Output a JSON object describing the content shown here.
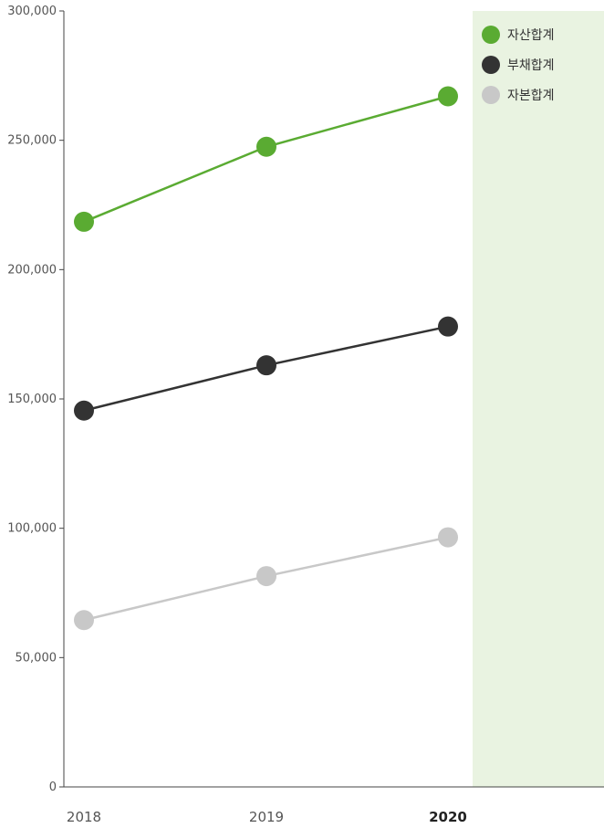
{
  "chart_data": {
    "type": "line",
    "categories": [
      "2018",
      "2019",
      "2020"
    ],
    "highlight_category": "2020",
    "ylim": [
      0,
      300000
    ],
    "y_ticks": [
      {
        "value": 0,
        "label": "0"
      },
      {
        "value": 50000,
        "label": "50,000"
      },
      {
        "value": 100000,
        "label": "100,000"
      },
      {
        "value": 150000,
        "label": "150,000"
      },
      {
        "value": 200000,
        "label": "200,000"
      },
      {
        "value": 250000,
        "label": "250,000"
      },
      {
        "value": 300000,
        "label": "300,000"
      }
    ],
    "grid": false,
    "legend_position": "top-right",
    "title": "",
    "xlabel": "",
    "ylabel": "",
    "series": [
      {
        "name": "자산합계",
        "color": "#5aab32",
        "values": [
          218500,
          247500,
          267000
        ]
      },
      {
        "name": "부채합계",
        "color": "#333333",
        "values": [
          145500,
          163000,
          178000
        ]
      },
      {
        "name": "자본합계",
        "color": "#c8c8c8",
        "values": [
          64500,
          81500,
          96500
        ]
      }
    ],
    "highlight_color": "#e9f3e1"
  }
}
